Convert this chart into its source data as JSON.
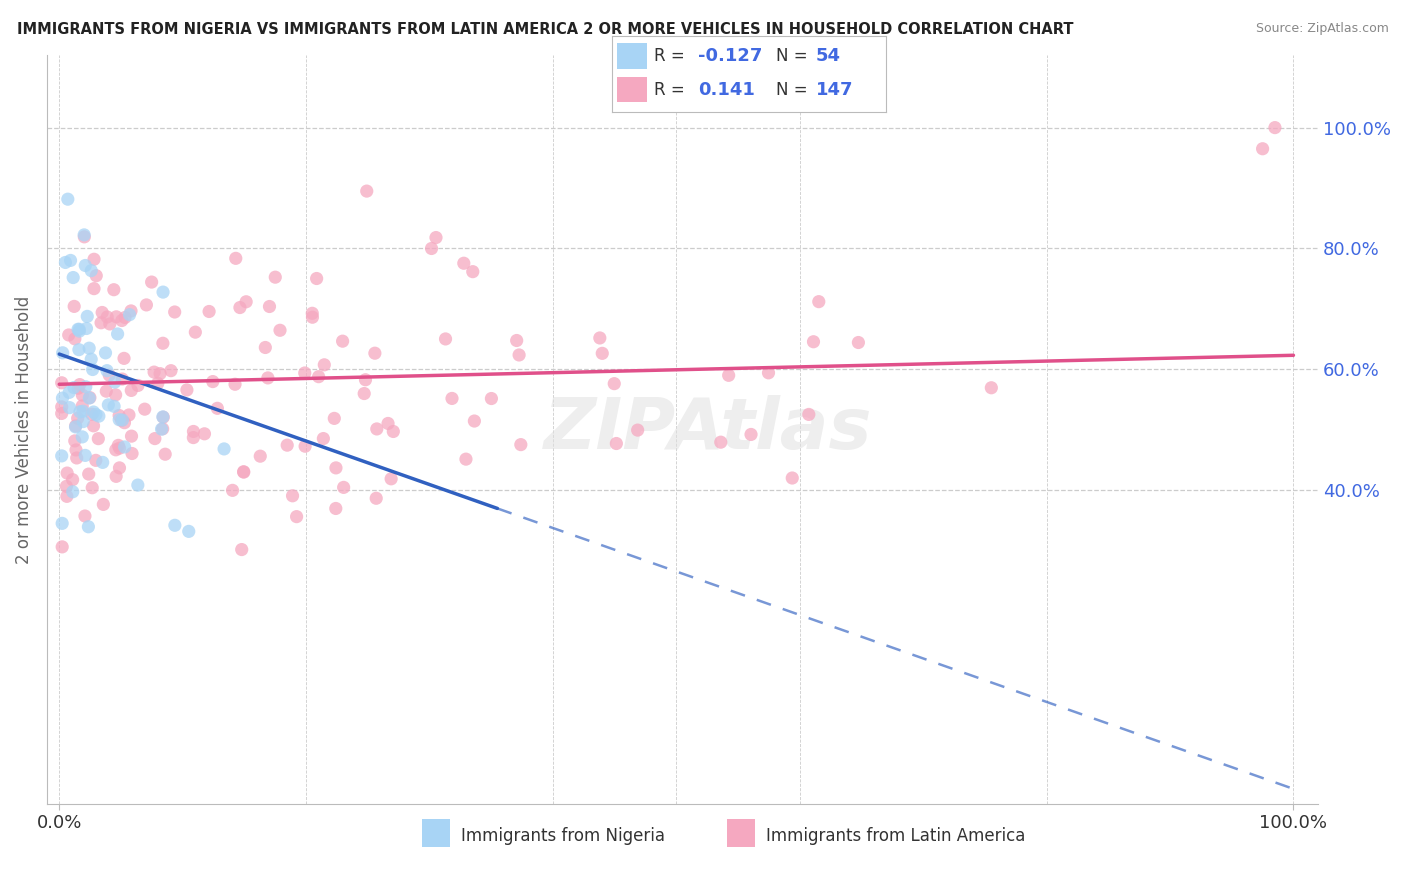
{
  "title": "IMMIGRANTS FROM NIGERIA VS IMMIGRANTS FROM LATIN AMERICA 2 OR MORE VEHICLES IN HOUSEHOLD CORRELATION CHART",
  "source": "Source: ZipAtlas.com",
  "ylabel": "2 or more Vehicles in Household",
  "ylabel_right_ticks": [
    "40.0%",
    "60.0%",
    "80.0%",
    "100.0%"
  ],
  "ylabel_right_vals": [
    0.4,
    0.6,
    0.8,
    1.0
  ],
  "R_nigeria": -0.127,
  "N_nigeria": 54,
  "R_latin": 0.141,
  "N_latin": 147,
  "color_nigeria": "#A8D4F5",
  "color_latin": "#F5A8C0",
  "color_nigeria_line": "#3060C0",
  "color_latin_line": "#E0508A",
  "watermark": "ZIPAtlas",
  "xlim": [
    -0.01,
    1.02
  ],
  "ylim": [
    -0.12,
    1.12
  ]
}
